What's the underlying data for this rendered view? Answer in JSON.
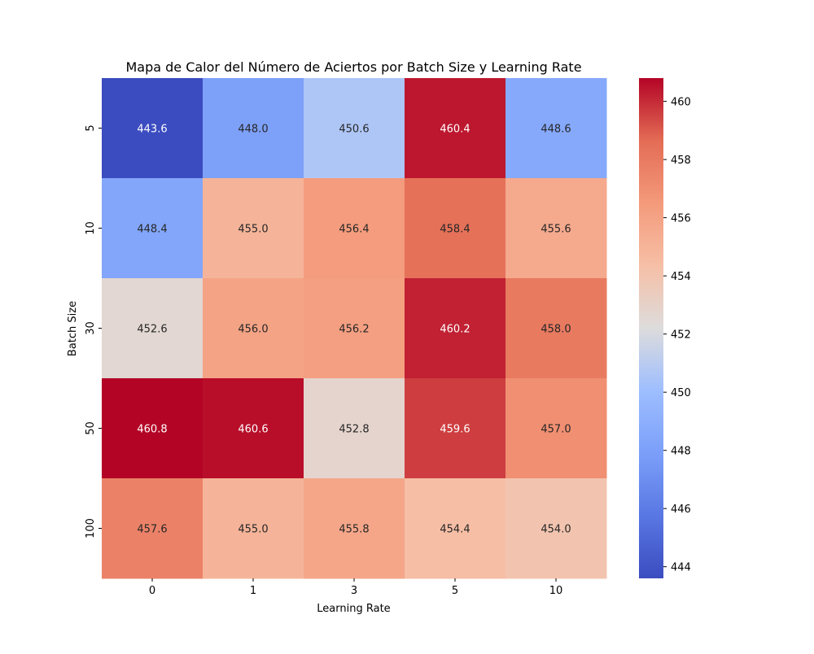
{
  "chart_data": {
    "type": "heatmap",
    "title": "Mapa de Calor del Número de Aciertos por Batch Size y Learning Rate",
    "xlabel": "Learning Rate",
    "ylabel": "Batch Size",
    "x_categories": [
      "0",
      "1",
      "3",
      "5",
      "10"
    ],
    "y_categories": [
      "5",
      "10",
      "30",
      "50",
      "100"
    ],
    "values": [
      [
        443.6,
        448.0,
        450.6,
        460.4,
        448.6
      ],
      [
        448.4,
        455.0,
        456.4,
        458.4,
        455.6
      ],
      [
        452.6,
        456.0,
        456.2,
        460.2,
        458.0
      ],
      [
        460.8,
        460.6,
        452.8,
        459.6,
        457.0
      ],
      [
        457.6,
        455.0,
        455.8,
        454.4,
        454.0
      ]
    ],
    "annotations": [
      [
        "443.6",
        "448.0",
        "450.6",
        "460.4",
        "448.6"
      ],
      [
        "448.4",
        "455.0",
        "456.4",
        "458.4",
        "455.6"
      ],
      [
        "452.6",
        "456.0",
        "456.2",
        "460.2",
        "458.0"
      ],
      [
        "460.8",
        "460.6",
        "452.8",
        "459.6",
        "457.0"
      ],
      [
        "457.6",
        "455.0",
        "455.8",
        "454.4",
        "454.0"
      ]
    ],
    "colormap": "coolwarm",
    "colorbar": {
      "vmin": 443.6,
      "vmax": 460.8,
      "ticks": [
        444,
        446,
        448,
        450,
        452,
        454,
        456,
        458,
        460
      ],
      "tick_labels": [
        "444",
        "446",
        "448",
        "450",
        "452",
        "454",
        "456",
        "458",
        "460"
      ]
    },
    "grid": false,
    "legend": "colorbar-right"
  }
}
